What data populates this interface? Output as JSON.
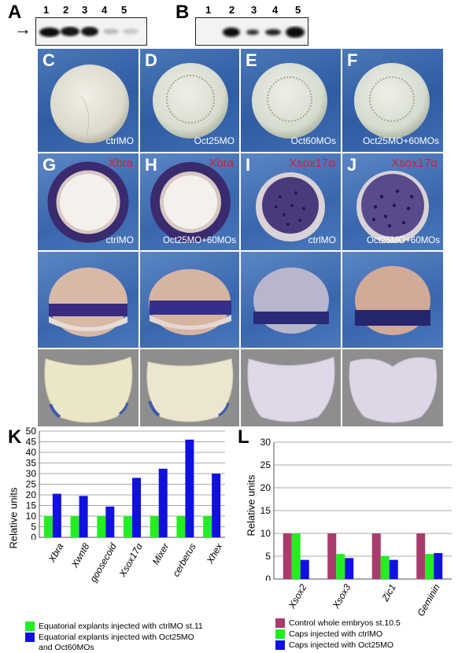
{
  "panels": {
    "A": {
      "letter": "A",
      "lanes": [
        "1",
        "2",
        "3",
        "4",
        "5"
      ],
      "arrow": "→"
    },
    "B": {
      "letter": "B",
      "lanes": [
        "1",
        "2",
        "3",
        "4",
        "5"
      ]
    },
    "C": {
      "letter": "C",
      "label": "ctrlMO"
    },
    "D": {
      "letter": "D",
      "label": "Oct25MO"
    },
    "E": {
      "letter": "E",
      "label": "Oct60MOs"
    },
    "F": {
      "letter": "F",
      "label": "Oct25MO+60MOs"
    },
    "G": {
      "letter": "G",
      "marker": "Xbra",
      "label": "ctrlMO"
    },
    "H": {
      "letter": "H",
      "marker": "Xbra",
      "label": "Oct25MO+60MOs"
    },
    "I": {
      "letter": "I",
      "marker": "Xsox17α",
      "label": "ctrlMO"
    },
    "J": {
      "letter": "J",
      "marker": "Xsox17α",
      "label": "Oct25MO+60MOs"
    },
    "K": {
      "letter": "K"
    },
    "L": {
      "letter": "L"
    }
  },
  "chart_data": [
    {
      "type": "bar",
      "panel": "K",
      "categories": [
        "Xbra",
        "Xwnt8",
        "goosecoid",
        "Xsox17α",
        "Mixer",
        "cerberus",
        "Xhex"
      ],
      "series": [
        {
          "name": "Equatorial explants injected with ctrlMO st.11",
          "color": "#22ee22",
          "values": [
            10,
            10,
            10,
            10,
            10,
            10,
            10
          ]
        },
        {
          "name": "Equatorial explants injected with Oct25MO and Oct60MOs",
          "color": "#1010e0",
          "values": [
            20.5,
            19.5,
            14.5,
            28,
            32.3,
            46,
            30
          ]
        }
      ],
      "ylabel": "Relative units",
      "ylim": [
        0,
        50
      ],
      "yticks": [
        0,
        5,
        10,
        15,
        20,
        25,
        30,
        35,
        40,
        45,
        50
      ],
      "legend": {
        "row1": "Equatorial explants injected with ctrlMO st.11",
        "row2a": "Equatorial explants injected with Oct25MO",
        "row2b": "and Oct60MOs"
      },
      "grid": true
    },
    {
      "type": "bar",
      "panel": "L",
      "categories": [
        "Xsox2",
        "Xsox3",
        "Zic1",
        "Geminin"
      ],
      "series": [
        {
          "name": "Control whole embryos st.10.5",
          "color": "#a83c6c",
          "values": [
            10,
            10,
            10,
            10
          ]
        },
        {
          "name": "Caps injected with ctrlMO",
          "color": "#22ee22",
          "values": [
            10,
            5.5,
            5,
            5.5
          ]
        },
        {
          "name": "Caps injected with Oct25MO",
          "color": "#1010e0",
          "values": [
            4.2,
            4.6,
            4.2,
            5.7
          ]
        }
      ],
      "ylabel": "Relative units",
      "ylim": [
        0,
        30
      ],
      "yticks": [
        0,
        5,
        10,
        15,
        20,
        25,
        30
      ],
      "legend": {
        "row1": "Control whole embryos st.10.5",
        "row2": "Caps injected with ctrlMO",
        "row3": "Caps injected with Oct25MO"
      },
      "grid": true
    }
  ]
}
